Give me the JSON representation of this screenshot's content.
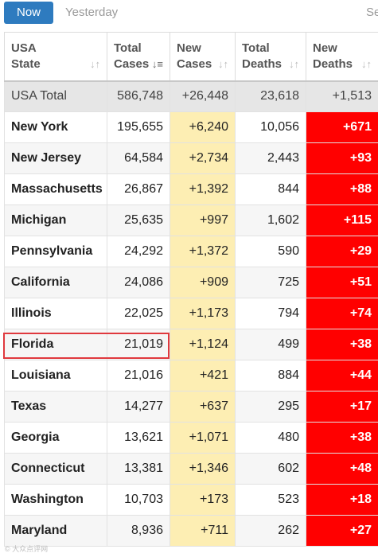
{
  "tabs": {
    "now": "Now",
    "yesterday": "Yesterday",
    "extra": "Se"
  },
  "table": {
    "headers": {
      "state": [
        "USA",
        "State"
      ],
      "total_cases": [
        "Total",
        "Cases"
      ],
      "new_cases": [
        "New",
        "Cases"
      ],
      "total_deaths": [
        "Total",
        "Deaths"
      ],
      "new_deaths": [
        "New",
        "Deaths"
      ]
    },
    "total_row": {
      "state": "USA Total",
      "total_cases": "586,748",
      "new_cases": "+26,448",
      "total_deaths": "23,618",
      "new_deaths": "+1,513"
    },
    "rows": [
      {
        "state": "New York",
        "total_cases": "195,655",
        "new_cases": "+6,240",
        "total_deaths": "10,056",
        "new_deaths": "+671"
      },
      {
        "state": "New Jersey",
        "total_cases": "64,584",
        "new_cases": "+2,734",
        "total_deaths": "2,443",
        "new_deaths": "+93"
      },
      {
        "state": "Massachusetts",
        "total_cases": "26,867",
        "new_cases": "+1,392",
        "total_deaths": "844",
        "new_deaths": "+88"
      },
      {
        "state": "Michigan",
        "total_cases": "25,635",
        "new_cases": "+997",
        "total_deaths": "1,602",
        "new_deaths": "+115"
      },
      {
        "state": "Pennsylvania",
        "total_cases": "24,292",
        "new_cases": "+1,372",
        "total_deaths": "590",
        "new_deaths": "+29"
      },
      {
        "state": "California",
        "total_cases": "24,086",
        "new_cases": "+909",
        "total_deaths": "725",
        "new_deaths": "+51"
      },
      {
        "state": "Illinois",
        "total_cases": "22,025",
        "new_cases": "+1,173",
        "total_deaths": "794",
        "new_deaths": "+74"
      },
      {
        "state": "Florida",
        "total_cases": "21,019",
        "new_cases": "+1,124",
        "total_deaths": "499",
        "new_deaths": "+38"
      },
      {
        "state": "Louisiana",
        "total_cases": "21,016",
        "new_cases": "+421",
        "total_deaths": "884",
        "new_deaths": "+44"
      },
      {
        "state": "Texas",
        "total_cases": "14,277",
        "new_cases": "+637",
        "total_deaths": "295",
        "new_deaths": "+17"
      },
      {
        "state": "Georgia",
        "total_cases": "13,621",
        "new_cases": "+1,071",
        "total_deaths": "480",
        "new_deaths": "+38"
      },
      {
        "state": "Connecticut",
        "total_cases": "13,381",
        "new_cases": "+1,346",
        "total_deaths": "602",
        "new_deaths": "+48"
      },
      {
        "state": "Washington",
        "total_cases": "10,703",
        "new_cases": "+173",
        "total_deaths": "523",
        "new_deaths": "+18"
      },
      {
        "state": "Maryland",
        "total_cases": "8,936",
        "new_cases": "+711",
        "total_deaths": "262",
        "new_deaths": "+27"
      }
    ]
  },
  "colors": {
    "accent": "#2e7bbf",
    "new_cases_bg": "#fdeeb3",
    "new_deaths_bg": "#ff0000",
    "highlight": "#e0393e"
  },
  "highlighted_state": "Florida",
  "watermark": "© 大众点评网"
}
